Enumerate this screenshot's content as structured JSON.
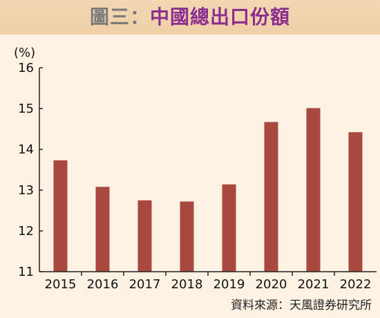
{
  "header": {
    "title_prefix": "圖三：",
    "title_main": "中國總出口份額"
  },
  "source": "資料來源：天風證券研究所",
  "colors": {
    "bar": "#a8483f",
    "header_bg": "#f0d3ad",
    "background": "#fdf2e3",
    "title_prefix": "#7a7a7a",
    "title_main": "#8b2f8f"
  },
  "chart_data": {
    "type": "bar",
    "ylabel": "(%)",
    "ylim": [
      11,
      16
    ],
    "yticks": [
      11,
      12,
      13,
      14,
      15,
      16
    ],
    "grid": false,
    "categories": [
      "2015",
      "2016",
      "2017",
      "2018",
      "2019",
      "2020",
      "2021",
      "2022"
    ],
    "values": [
      13.73,
      13.08,
      12.75,
      12.72,
      13.14,
      14.67,
      15.01,
      14.42
    ]
  }
}
